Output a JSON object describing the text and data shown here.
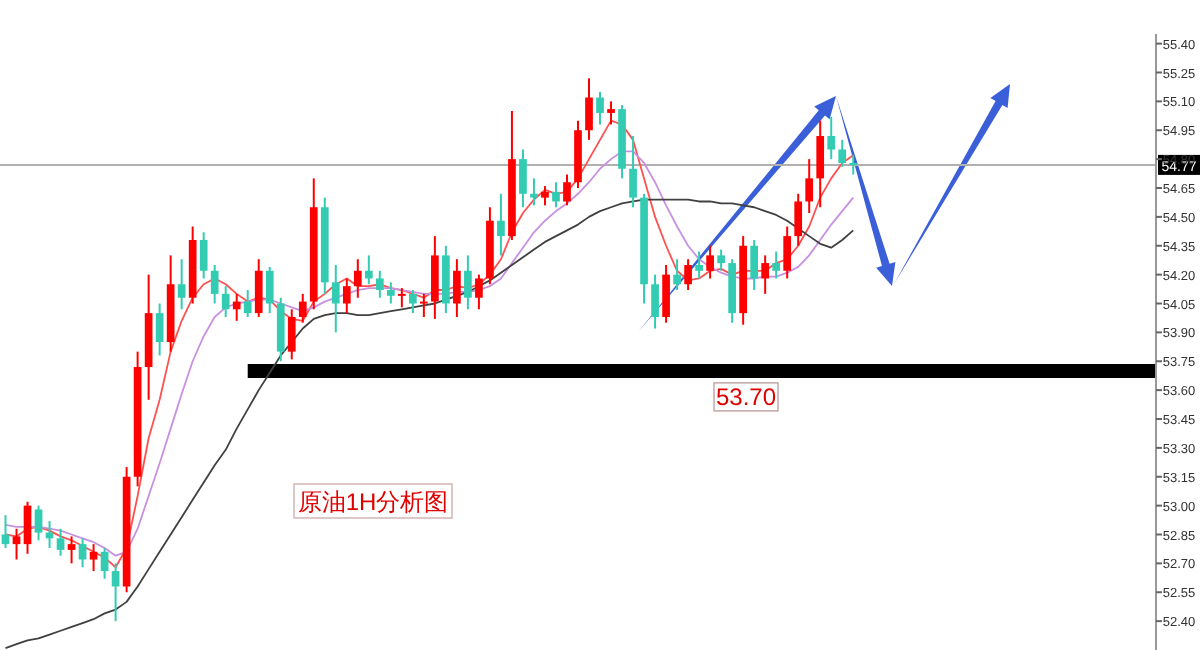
{
  "chart_data": {
    "type": "candlestick",
    "categories": [
      null,
      null,
      null,
      null,
      null,
      null,
      null,
      null,
      null,
      null,
      null,
      null,
      null,
      null,
      null,
      null,
      null,
      null,
      null,
      null,
      null,
      null,
      null,
      null,
      null,
      null,
      null,
      null,
      null,
      null,
      null,
      null,
      null,
      null,
      null,
      null,
      null,
      null,
      null,
      null,
      null,
      null,
      null,
      null,
      null,
      null,
      null,
      null,
      null,
      null,
      null,
      null,
      null,
      null,
      null,
      null,
      null,
      null,
      null,
      null,
      null,
      null,
      null,
      null,
      null,
      null,
      null,
      null,
      null,
      null,
      null,
      null,
      null,
      null,
      null,
      null,
      null,
      null,
      null,
      null,
      null,
      null,
      null,
      null,
      null,
      null,
      null,
      null,
      null,
      null,
      null,
      null,
      null,
      null,
      null,
      null,
      null,
      null,
      null,
      null,
      null,
      null,
      null,
      null,
      null
    ],
    "ohlc": [
      [
        52.85,
        52.95,
        52.78,
        52.8
      ],
      [
        52.8,
        52.88,
        52.72,
        52.84
      ],
      [
        52.8,
        53.02,
        52.75,
        53.0
      ],
      [
        52.98,
        53.0,
        52.82,
        52.86
      ],
      [
        52.86,
        52.92,
        52.78,
        52.83
      ],
      [
        52.83,
        52.88,
        52.74,
        52.77
      ],
      [
        52.77,
        52.84,
        52.7,
        52.8
      ],
      [
        52.8,
        52.83,
        52.68,
        52.72
      ],
      [
        52.72,
        52.8,
        52.66,
        52.76
      ],
      [
        52.76,
        52.78,
        52.62,
        52.66
      ],
      [
        52.66,
        52.7,
        52.4,
        52.58
      ],
      [
        52.58,
        53.2,
        52.55,
        53.15
      ],
      [
        53.15,
        53.8,
        53.1,
        53.72
      ],
      [
        53.72,
        54.2,
        53.55,
        54.0
      ],
      [
        54.0,
        54.05,
        53.78,
        53.85
      ],
      [
        53.85,
        54.3,
        53.8,
        54.15
      ],
      [
        54.15,
        54.28,
        54.02,
        54.08
      ],
      [
        54.08,
        54.45,
        54.05,
        54.38
      ],
      [
        54.38,
        54.42,
        54.18,
        54.22
      ],
      [
        54.22,
        54.25,
        54.05,
        54.1
      ],
      [
        54.1,
        54.14,
        53.98,
        54.02
      ],
      [
        54.02,
        54.1,
        53.96,
        54.06
      ],
      [
        54.06,
        54.12,
        53.98,
        54.0
      ],
      [
        54.0,
        54.28,
        53.98,
        54.22
      ],
      [
        54.22,
        54.24,
        54.0,
        54.05
      ],
      [
        54.05,
        54.08,
        53.75,
        53.8
      ],
      [
        53.8,
        54.02,
        53.76,
        53.98
      ],
      [
        53.98,
        54.1,
        53.95,
        54.06
      ],
      [
        54.06,
        54.7,
        54.02,
        54.55
      ],
      [
        54.55,
        54.6,
        54.1,
        54.16
      ],
      [
        54.16,
        54.25,
        53.9,
        54.05
      ],
      [
        54.05,
        54.18,
        54.0,
        54.14
      ],
      [
        54.14,
        54.28,
        54.08,
        54.22
      ],
      [
        54.22,
        54.3,
        54.15,
        54.18
      ],
      [
        54.18,
        54.22,
        54.08,
        54.12
      ],
      [
        54.12,
        54.16,
        54.05,
        54.09
      ],
      [
        54.09,
        54.13,
        54.03,
        54.1
      ],
      [
        54.1,
        54.12,
        54.0,
        54.05
      ],
      [
        54.05,
        54.1,
        53.98,
        54.06
      ],
      [
        54.06,
        54.4,
        53.97,
        54.3
      ],
      [
        54.3,
        54.35,
        54.0,
        54.05
      ],
      [
        54.05,
        54.28,
        53.98,
        54.22
      ],
      [
        54.22,
        54.3,
        54.02,
        54.08
      ],
      [
        54.08,
        54.2,
        54.02,
        54.18
      ],
      [
        54.18,
        54.55,
        54.15,
        54.48
      ],
      [
        54.48,
        54.62,
        54.3,
        54.4
      ],
      [
        54.4,
        55.05,
        54.38,
        54.8
      ],
      [
        54.8,
        54.85,
        54.55,
        54.62
      ],
      [
        54.62,
        54.7,
        54.56,
        54.6
      ],
      [
        54.6,
        54.66,
        54.56,
        54.63
      ],
      [
        54.63,
        54.68,
        54.55,
        54.58
      ],
      [
        54.58,
        54.72,
        54.56,
        54.68
      ],
      [
        54.68,
        55.0,
        54.65,
        54.95
      ],
      [
        54.95,
        55.22,
        54.9,
        55.12
      ],
      [
        55.12,
        55.15,
        54.98,
        55.04
      ],
      [
        55.04,
        55.1,
        54.98,
        55.06
      ],
      [
        55.06,
        55.08,
        54.7,
        54.75
      ],
      [
        54.75,
        54.92,
        54.55,
        54.6
      ],
      [
        54.6,
        54.62,
        54.05,
        54.15
      ],
      [
        54.15,
        54.2,
        53.92,
        53.98
      ],
      [
        53.98,
        54.25,
        53.95,
        54.2
      ],
      [
        54.2,
        54.28,
        54.12,
        54.15
      ],
      [
        54.15,
        54.28,
        54.12,
        54.25
      ],
      [
        54.25,
        54.32,
        54.18,
        54.22
      ],
      [
        54.22,
        54.35,
        54.18,
        54.3
      ],
      [
        54.3,
        54.33,
        54.22,
        54.26
      ],
      [
        54.26,
        54.28,
        53.95,
        54.0
      ],
      [
        54.0,
        54.4,
        53.94,
        54.35
      ],
      [
        54.35,
        54.38,
        54.12,
        54.18
      ],
      [
        54.18,
        54.3,
        54.1,
        54.26
      ],
      [
        54.26,
        54.32,
        54.18,
        54.22
      ],
      [
        54.22,
        54.45,
        54.18,
        54.4
      ],
      [
        54.4,
        54.62,
        54.35,
        54.58
      ],
      [
        54.58,
        54.8,
        54.52,
        54.7
      ],
      [
        54.7,
        55.0,
        54.55,
        54.92
      ],
      [
        54.92,
        55.02,
        54.8,
        54.85
      ],
      [
        54.85,
        54.9,
        54.76,
        54.78
      ],
      [
        54.78,
        54.82,
        54.72,
        54.77
      ],
      null,
      null,
      null,
      null,
      null,
      null,
      null,
      null,
      null,
      null,
      null,
      null,
      null,
      null,
      null,
      null,
      null,
      null,
      null,
      null,
      null,
      null,
      null,
      null,
      null,
      null,
      null
    ],
    "colors": [
      "#33ccb3",
      "#ff0000",
      "#ff0000",
      "#33ccb3",
      "#33ccb3",
      "#33ccb3",
      "#ff0000",
      "#33ccb3",
      "#ff0000",
      "#33ccb3",
      "#33ccb3",
      "#ff0000",
      "#ff0000",
      "#ff0000",
      "#33ccb3",
      "#ff0000",
      "#33ccb3",
      "#ff0000",
      "#33ccb3",
      "#33ccb3",
      "#33ccb3",
      "#ff0000",
      "#33ccb3",
      "#ff0000",
      "#33ccb3",
      "#33ccb3",
      "#ff0000",
      "#ff0000",
      "#ff0000",
      "#33ccb3",
      "#33ccb3",
      "#ff0000",
      "#ff0000",
      "#33ccb3",
      "#33ccb3",
      "#33ccb3",
      "#ff0000",
      "#33ccb3",
      "#ff0000",
      "#ff0000",
      "#33ccb3",
      "#ff0000",
      "#33ccb3",
      "#ff0000",
      "#ff0000",
      "#33ccb3",
      "#ff0000",
      "#33ccb3",
      "#33ccb3",
      "#ff0000",
      "#33ccb3",
      "#ff0000",
      "#ff0000",
      "#ff0000",
      "#33ccb3",
      "#ff0000",
      "#33ccb3",
      "#33ccb3",
      "#33ccb3",
      "#33ccb3",
      "#ff0000",
      "#33ccb3",
      "#ff0000",
      "#33ccb3",
      "#ff0000",
      "#33ccb3",
      "#33ccb3",
      "#ff0000",
      "#33ccb3",
      "#ff0000",
      "#33ccb3",
      "#ff0000",
      "#ff0000",
      "#ff0000",
      "#ff0000",
      "#33ccb3",
      "#33ccb3",
      "#33ccb3",
      null,
      null,
      null,
      null,
      null,
      null,
      null,
      null,
      null,
      null,
      null,
      null,
      null,
      null,
      null,
      null,
      null,
      null,
      null,
      null,
      null,
      null,
      null,
      null,
      null,
      null,
      null
    ],
    "series": [
      {
        "type": "line",
        "color": "#ff5050",
        "values": [
          52.85,
          52.84,
          52.88,
          52.89,
          52.87,
          52.84,
          52.82,
          52.79,
          52.76,
          52.73,
          52.68,
          52.78,
          53.05,
          53.35,
          53.55,
          53.8,
          53.96,
          54.08,
          54.15,
          54.18,
          54.15,
          54.1,
          54.06,
          54.08,
          54.07,
          54.01,
          53.97,
          53.96,
          54.06,
          54.1,
          54.15,
          54.18,
          54.14,
          54.14,
          54.15,
          54.13,
          54.12,
          54.1,
          54.08,
          54.12,
          54.12,
          54.14,
          54.13,
          54.15,
          54.2,
          54.28,
          54.42,
          54.52,
          54.59,
          54.64,
          54.62,
          54.63,
          54.7,
          54.8,
          54.9,
          55.0,
          54.98,
          54.9,
          54.7,
          54.5,
          54.35,
          54.22,
          54.17,
          54.18,
          54.22,
          54.23,
          54.2,
          54.22,
          54.22,
          54.22,
          54.26,
          54.28,
          54.35,
          54.45,
          54.6,
          54.7,
          54.78,
          54.82,
          null,
          null,
          null,
          null,
          null,
          null,
          null,
          null,
          null,
          null,
          null,
          null,
          null,
          null,
          null,
          null,
          null,
          null,
          null,
          null,
          null,
          null,
          null,
          null,
          null,
          null,
          null
        ]
      },
      {
        "type": "line",
        "color": "#c890e0",
        "values": [
          52.9,
          52.89,
          52.89,
          52.89,
          52.88,
          52.87,
          52.85,
          52.83,
          52.81,
          52.78,
          52.74,
          52.76,
          52.88,
          53.05,
          53.22,
          53.4,
          53.58,
          53.75,
          53.88,
          53.98,
          54.03,
          54.05,
          54.06,
          54.07,
          54.07,
          54.05,
          54.03,
          54.01,
          54.03,
          54.06,
          54.08,
          54.1,
          54.12,
          54.13,
          54.13,
          54.13,
          54.12,
          54.11,
          54.1,
          54.1,
          54.1,
          54.11,
          54.11,
          54.12,
          54.14,
          54.18,
          54.26,
          54.34,
          54.42,
          54.48,
          54.53,
          54.57,
          54.62,
          54.68,
          54.75,
          54.8,
          54.84,
          54.84,
          54.78,
          54.68,
          54.56,
          54.45,
          54.35,
          54.28,
          54.24,
          54.21,
          54.19,
          54.18,
          54.18,
          54.19,
          54.19,
          54.21,
          54.24,
          54.3,
          54.38,
          54.46,
          54.53,
          54.6,
          null,
          null,
          null,
          null,
          null,
          null,
          null,
          null,
          null,
          null,
          null,
          null,
          null,
          null,
          null,
          null,
          null,
          null,
          null,
          null,
          null,
          null,
          null,
          null,
          null,
          null,
          null
        ]
      },
      {
        "type": "line",
        "color": "#404040",
        "values": [
          52.26,
          52.28,
          52.3,
          52.31,
          52.33,
          52.35,
          52.37,
          52.39,
          52.41,
          52.44,
          52.46,
          52.5,
          52.58,
          52.67,
          52.76,
          52.85,
          52.94,
          53.03,
          53.12,
          53.21,
          53.29,
          53.4,
          53.5,
          53.6,
          53.69,
          53.78,
          53.85,
          53.92,
          53.97,
          53.99,
          54.0,
          54.0,
          53.99,
          53.99,
          54.0,
          54.01,
          54.02,
          54.03,
          54.04,
          54.05,
          54.07,
          54.09,
          54.11,
          54.14,
          54.17,
          54.21,
          54.25,
          54.29,
          54.33,
          54.37,
          54.4,
          54.43,
          54.46,
          54.5,
          54.53,
          54.55,
          54.57,
          54.58,
          54.59,
          54.59,
          54.59,
          54.59,
          54.59,
          54.58,
          54.58,
          54.57,
          54.57,
          54.56,
          54.55,
          54.53,
          54.51,
          54.48,
          54.44,
          54.4,
          54.36,
          54.34,
          54.38,
          54.43,
          null,
          null,
          null,
          null,
          null,
          null,
          null,
          null,
          null,
          null,
          null,
          null,
          null,
          null,
          null,
          null,
          null,
          null,
          null,
          null,
          null,
          null,
          null,
          null,
          null,
          null,
          null
        ]
      }
    ],
    "ylim": [
      52.25,
      55.45
    ],
    "yticks": [
      {
        "value": 52.4,
        "label": "52.40"
      },
      52.55,
      {
        "value": 52.7,
        "label": "52.70"
      },
      52.85,
      {
        "value": 53,
        "label": "53.00"
      },
      53.15,
      {
        "value": 53.3,
        "label": "53.30"
      },
      53.45,
      {
        "value": 53.6,
        "label": "53.60"
      },
      53.75,
      {
        "value": 53.9,
        "label": "53.90"
      },
      54.05,
      {
        "value": 54.2,
        "label": "54.20"
      },
      54.35,
      {
        "value": 54.5,
        "label": "54.50"
      },
      54.65,
      {
        "value": 54.8,
        "label": "54.80"
      },
      54.95,
      {
        "value": 55.1,
        "label": "55.10"
      },
      55.25,
      {
        "value": 55.4,
        "label": "55.40"
      }
    ],
    "tick_labels": "y",
    "ref_lines": [
      {
        "axis": "y",
        "value": 53.7,
        "label": "53.70",
        "color": "#000000"
      },
      {
        "axis": "y",
        "value": 54.77,
        "label": "54.77",
        "color": "#b0b0b0"
      }
    ],
    "annotations": [
      "原油1H分析图"
    ]
  }
}
